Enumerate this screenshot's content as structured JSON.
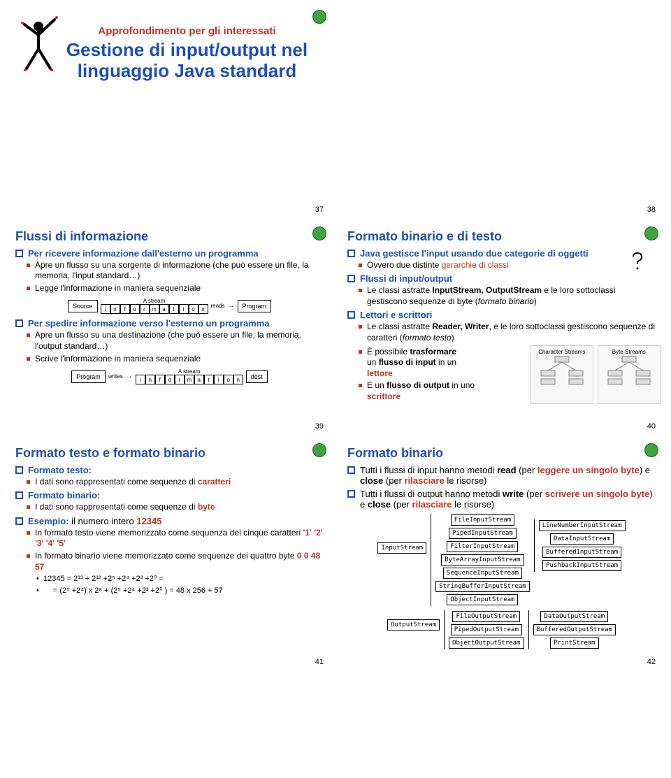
{
  "slides": {
    "s37": {
      "page": "37",
      "title_red": "Approfondimento per gli interessati",
      "title_blue": "Gestione di input/output nel linguaggio Java standard"
    },
    "s38": {
      "page": "38"
    },
    "s39": {
      "page": "39",
      "title": "Flussi di informazione",
      "b1": "Per ricevere informazione dall'esterno un programma",
      "b1a": "Apre un flusso su una sorgente di informazione (che può essere un file, la memoria, l'input standard…)",
      "b1b": "Legge l'informazione in maniera sequenziale",
      "b2": "Per spedire informazione verso l'esterno un programma",
      "b2a": "Apre un flusso su una destinazione (che può essere un file, la memoria, l'output standard…)",
      "b2b": "Scrive l'informazione in maniera sequenziale",
      "fig_source": "Source",
      "fig_program": "Program",
      "fig_reads": "reads",
      "fig_writes": "writes",
      "fig_dest": "dest",
      "fig_stream": "A stream"
    },
    "s40": {
      "page": "40",
      "title": "Formato binario e di testo",
      "b1": "Java gestisce l'input usando due categorie di oggetti",
      "b1a_pre": "Ovvero due distinte ",
      "b1a_red": "gerarchie di classi",
      "b2": "Flussi di input/output",
      "b2a_pre": "Le classi astratte ",
      "b2a_bold": "InputStream, OutputStream",
      "b2a_post": " e le loro sottoclassi gestiscono sequenze di byte (",
      "b2a_it": "formato binario",
      "b2a_end": ")",
      "b3": "Lettori e scrittori",
      "b3a_pre": "Le classi astratte ",
      "b3a_bold": "Reader, Writer",
      "b3a_post": ", e le loro sottoclassi gestiscono sequenze di caratteri (",
      "b3a_it": "formato testo",
      "b3a_end": ")",
      "b4a_pre": "È possibile ",
      "b4a_bold": "trasformare",
      "b4a_line2_pre": "un ",
      "b4a_line2_bold": "flusso di input",
      "b4a_line2_post": " in un ",
      "b4a_line2_red": "lettore",
      "b4b_pre": "E un ",
      "b4b_bold": "flusso di output",
      "b4b_post": " in uno ",
      "b4b_red": "scrittore",
      "char_streams": "Character Streams",
      "byte_streams": "Byte Streams"
    },
    "s41": {
      "page": "41",
      "title": "Formato testo e formato binario",
      "b1": "Formato testo:",
      "b1a_pre": "I dati sono rappresentati come sequenze di ",
      "b1a_red": "caratteri",
      "b2": "Formato binario:",
      "b2a_pre": "I dati sono rappresentati come sequenze di ",
      "b2a_red": "byte",
      "b3_pre": "Esempio: ",
      "b3_post": "il numero intero ",
      "b3_red": "12345",
      "b3a_pre": "In formato testo viene memorizzato come sequenza dei cinque caratteri ",
      "b3a_red": "'1' '2' '3' '4' '5'",
      "b3b_pre": "In formato binario viene memorizzato come sequenze dei quattro byte ",
      "b3b_red": "0 0 48 57",
      "b3c": "12345 = 2¹³ + 2¹² +2⁵ +2⁴ +2³ +2⁰ =",
      "b3d": "= (2⁵ +2⁴) x 2⁸ + (2⁵ +2⁴ +2³ +2⁰ ) = 48 x 256 + 57"
    },
    "s42": {
      "page": "42",
      "title": "Formato binario",
      "b1_pre": "Tutti i flussi di input hanno metodi ",
      "b1_bold": "read",
      "b1_mid": " (per ",
      "b1_red1": "leggere un singolo byte",
      "b1_mid2": ") e ",
      "b1_bold2": "close",
      "b1_mid3": " (per ",
      "b1_red2": "rilasciare",
      "b1_end": " le risorse)",
      "b2_pre": "Tutti i flussi di output hanno metodi ",
      "b2_bold": "write",
      "b2_mid": " (per ",
      "b2_red1": "scrivere un singolo byte",
      "b2_mid2": ") e ",
      "b2_bold2": "close",
      "b2_mid3": " (per ",
      "b2_red2": "rilasciare",
      "b2_end": " le risorse)",
      "in_root": "InputStream",
      "in_classes": [
        "FileInputStream",
        "PipedInputStream",
        "FilterInputStream",
        "ByteArrayInputStream",
        "SequenceInputStream",
        "StringBufferInputStream",
        "ObjectInputStream"
      ],
      "out_root": "OutputStream",
      "out_classes": [
        "FileOutputStream",
        "PipedOutputStream",
        "ObjectOutputStream"
      ],
      "filter_in": [
        "LineNumberInputStream",
        "DataInputStream",
        "BufferedInputStream",
        "PushbackInputStream"
      ],
      "filter_out": [
        "DataOutputStream",
        "BufferedOutputStream",
        "PrintStream"
      ]
    }
  },
  "colors": {
    "blue": "#1e4fb2",
    "red": "#c03020",
    "green": "#3fa43f"
  }
}
